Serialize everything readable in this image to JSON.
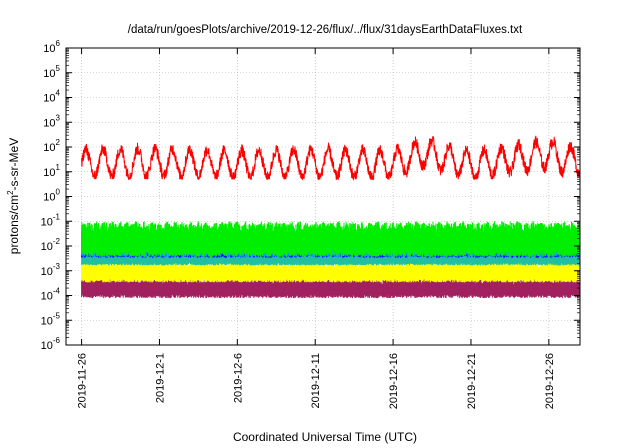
{
  "chart_data": {
    "type": "line",
    "title": "/data/run/goesPlots/archive/2019-12-26/flux/../flux/31daysEarthDataFluxes.txt",
    "xlabel": "Coordinated Universal Time (UTC)",
    "ylabel": {
      "base": "protons/cm",
      "sup": "2",
      "rest": "-s-sr-MeV"
    },
    "y_scale": "log",
    "ylim": [
      1e-06,
      1000000.0
    ],
    "y_ticks": [
      {
        "value": 1000000.0,
        "base": "10",
        "exp": "6"
      },
      {
        "value": 100000.0,
        "base": "10",
        "exp": "5"
      },
      {
        "value": 10000.0,
        "base": "10",
        "exp": "4"
      },
      {
        "value": 1000.0,
        "base": "10",
        "exp": "3"
      },
      {
        "value": 100.0,
        "base": "10",
        "exp": "2"
      },
      {
        "value": 10.0,
        "base": "10",
        "exp": "1"
      },
      {
        "value": 1.0,
        "base": "10",
        "exp": "0"
      },
      {
        "value": 0.1,
        "base": "10",
        "exp": "-1"
      },
      {
        "value": 0.01,
        "base": "10",
        "exp": "-2"
      },
      {
        "value": 0.001,
        "base": "10",
        "exp": "-3"
      },
      {
        "value": 0.0001,
        "base": "10",
        "exp": "-4"
      },
      {
        "value": 1e-05,
        "base": "10",
        "exp": "-5"
      },
      {
        "value": 1e-06,
        "base": "10",
        "exp": "-6"
      }
    ],
    "xlim": [
      "2019-11-25",
      "2019-12-28"
    ],
    "x_ticks": [
      "2019-11-26",
      "2019-12-1",
      "2019-12-6",
      "2019-12-11",
      "2019-12-16",
      "2019-12-21",
      "2019-12-26"
    ],
    "x_tick_dates": [
      "2019-11-26",
      "2019-12-01",
      "2019-12-06",
      "2019-12-11",
      "2019-12-16",
      "2019-12-21",
      "2019-12-26"
    ],
    "grid": true,
    "series": [
      {
        "color": "#ff0000",
        "low": 5,
        "high": 300,
        "daily_period": true,
        "daily_values": [
          [
            "2019-11-26",
            50
          ],
          [
            "2019-12-01",
            60
          ],
          [
            "2019-12-06",
            40
          ],
          [
            "2019-12-11",
            50
          ],
          [
            "2019-12-16",
            40
          ],
          [
            "2019-12-18",
            400
          ],
          [
            "2019-12-21",
            30
          ],
          [
            "2019-12-26",
            300
          ],
          [
            "2019-12-27",
            100
          ]
        ]
      },
      {
        "color": "#00ee00",
        "low": 0.003,
        "high": 0.15
      },
      {
        "color": "#1e90ff",
        "low": 0.003,
        "high": 0.08
      },
      {
        "color": "#0000ff",
        "low": 0.003,
        "high": 0.03
      },
      {
        "color": "#20c0a0",
        "low": 0.0015,
        "high": 0.008
      },
      {
        "color": "#ffff00",
        "low": 0.0003,
        "high": 0.003
      },
      {
        "color": "#a02060",
        "low": 7e-05,
        "high": 0.0007
      }
    ]
  }
}
